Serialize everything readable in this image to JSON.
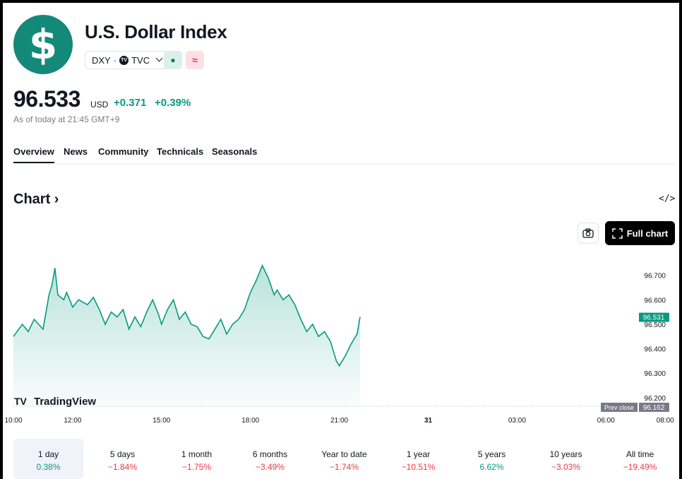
{
  "header": {
    "logo_symbol": "$",
    "title": "U.S. Dollar Index",
    "ticker": "DXY",
    "exchange_separator": "·",
    "exchange": "TVC",
    "market_status_icon": "●",
    "delay_icon": "≈"
  },
  "quote": {
    "price": "96.533",
    "currency": "USD",
    "change": "+0.371",
    "change_pct": "+0.39%",
    "as_of": "As of today at 21:45 GMT+9"
  },
  "tabs": [
    "Overview",
    "News",
    "Community",
    "Technicals",
    "Seasonals"
  ],
  "chart_section": {
    "heading": "Chart",
    "full_chart_label": "Full chart",
    "watermark": "TradingView",
    "last_price_label": "96.531",
    "prev_close_label": "Prev close",
    "prev_close_value": "96.162"
  },
  "chart_data": {
    "type": "area",
    "color": "#089981",
    "ylim": [
      96.162,
      96.78
    ],
    "y_ticks": [
      "96.700",
      "96.600",
      "96.500",
      "96.400",
      "96.300",
      "96.200"
    ],
    "y_tick_values": [
      96.7,
      96.6,
      96.5,
      96.4,
      96.3,
      96.2
    ],
    "x_ticks": [
      "10:00",
      "12:00",
      "15:00",
      "18:00",
      "21:00",
      "31",
      "03:00",
      "06:00",
      "08:00"
    ],
    "x_tick_hours": [
      10,
      12,
      15,
      18,
      21,
      24,
      27,
      30,
      32
    ],
    "x_range_hours": [
      10,
      32.4
    ],
    "prev_close": 96.162,
    "series": [
      {
        "x_hours": [
          10.0,
          10.3,
          10.5,
          10.7,
          11.0,
          11.2,
          11.3,
          11.4,
          11.5,
          11.7,
          11.8,
          12.0,
          12.2,
          12.5,
          12.7,
          12.9,
          13.1,
          13.3,
          13.5,
          13.7,
          13.9,
          14.1,
          14.3,
          14.5,
          14.7,
          14.9,
          15.0,
          15.2,
          15.4,
          15.6,
          15.8,
          16.0,
          16.2,
          16.4,
          16.6,
          16.8,
          17.0,
          17.2,
          17.4,
          17.6,
          17.8,
          18.0,
          18.2,
          18.4,
          18.6,
          18.8,
          18.9,
          19.1,
          19.3,
          19.5,
          19.7,
          19.9,
          20.1,
          20.3,
          20.5,
          20.7,
          20.9,
          21.0,
          21.2,
          21.4,
          21.6,
          21.7
        ],
        "y": [
          96.45,
          96.5,
          96.47,
          96.52,
          96.48,
          96.62,
          96.66,
          96.73,
          96.62,
          96.6,
          96.63,
          96.57,
          96.6,
          96.58,
          96.61,
          96.56,
          96.5,
          96.55,
          96.53,
          96.56,
          96.48,
          96.53,
          96.49,
          96.55,
          96.6,
          96.54,
          96.5,
          96.56,
          96.6,
          96.52,
          96.55,
          96.5,
          96.49,
          96.45,
          96.44,
          96.48,
          96.52,
          96.46,
          96.5,
          96.52,
          96.56,
          96.63,
          96.68,
          96.74,
          96.69,
          96.62,
          96.64,
          96.6,
          96.62,
          96.58,
          96.52,
          96.47,
          96.5,
          96.45,
          96.47,
          96.43,
          96.35,
          96.33,
          96.37,
          96.42,
          96.46,
          96.53
        ]
      }
    ]
  },
  "periods": [
    {
      "label": "1 day",
      "value": "0.38%",
      "positive": true
    },
    {
      "label": "5 days",
      "value": "−1.84%",
      "positive": false
    },
    {
      "label": "1 month",
      "value": "−1.75%",
      "positive": false
    },
    {
      "label": "6 months",
      "value": "−3.49%",
      "positive": false
    },
    {
      "label": "Year to date",
      "value": "−1.74%",
      "positive": false
    },
    {
      "label": "1 year",
      "value": "−10.51%",
      "positive": false
    },
    {
      "label": "5 years",
      "value": "6.62%",
      "positive": true
    },
    {
      "label": "10 years",
      "value": "−3.03%",
      "positive": false
    },
    {
      "label": "All time",
      "value": "−19.49%",
      "positive": false
    }
  ]
}
